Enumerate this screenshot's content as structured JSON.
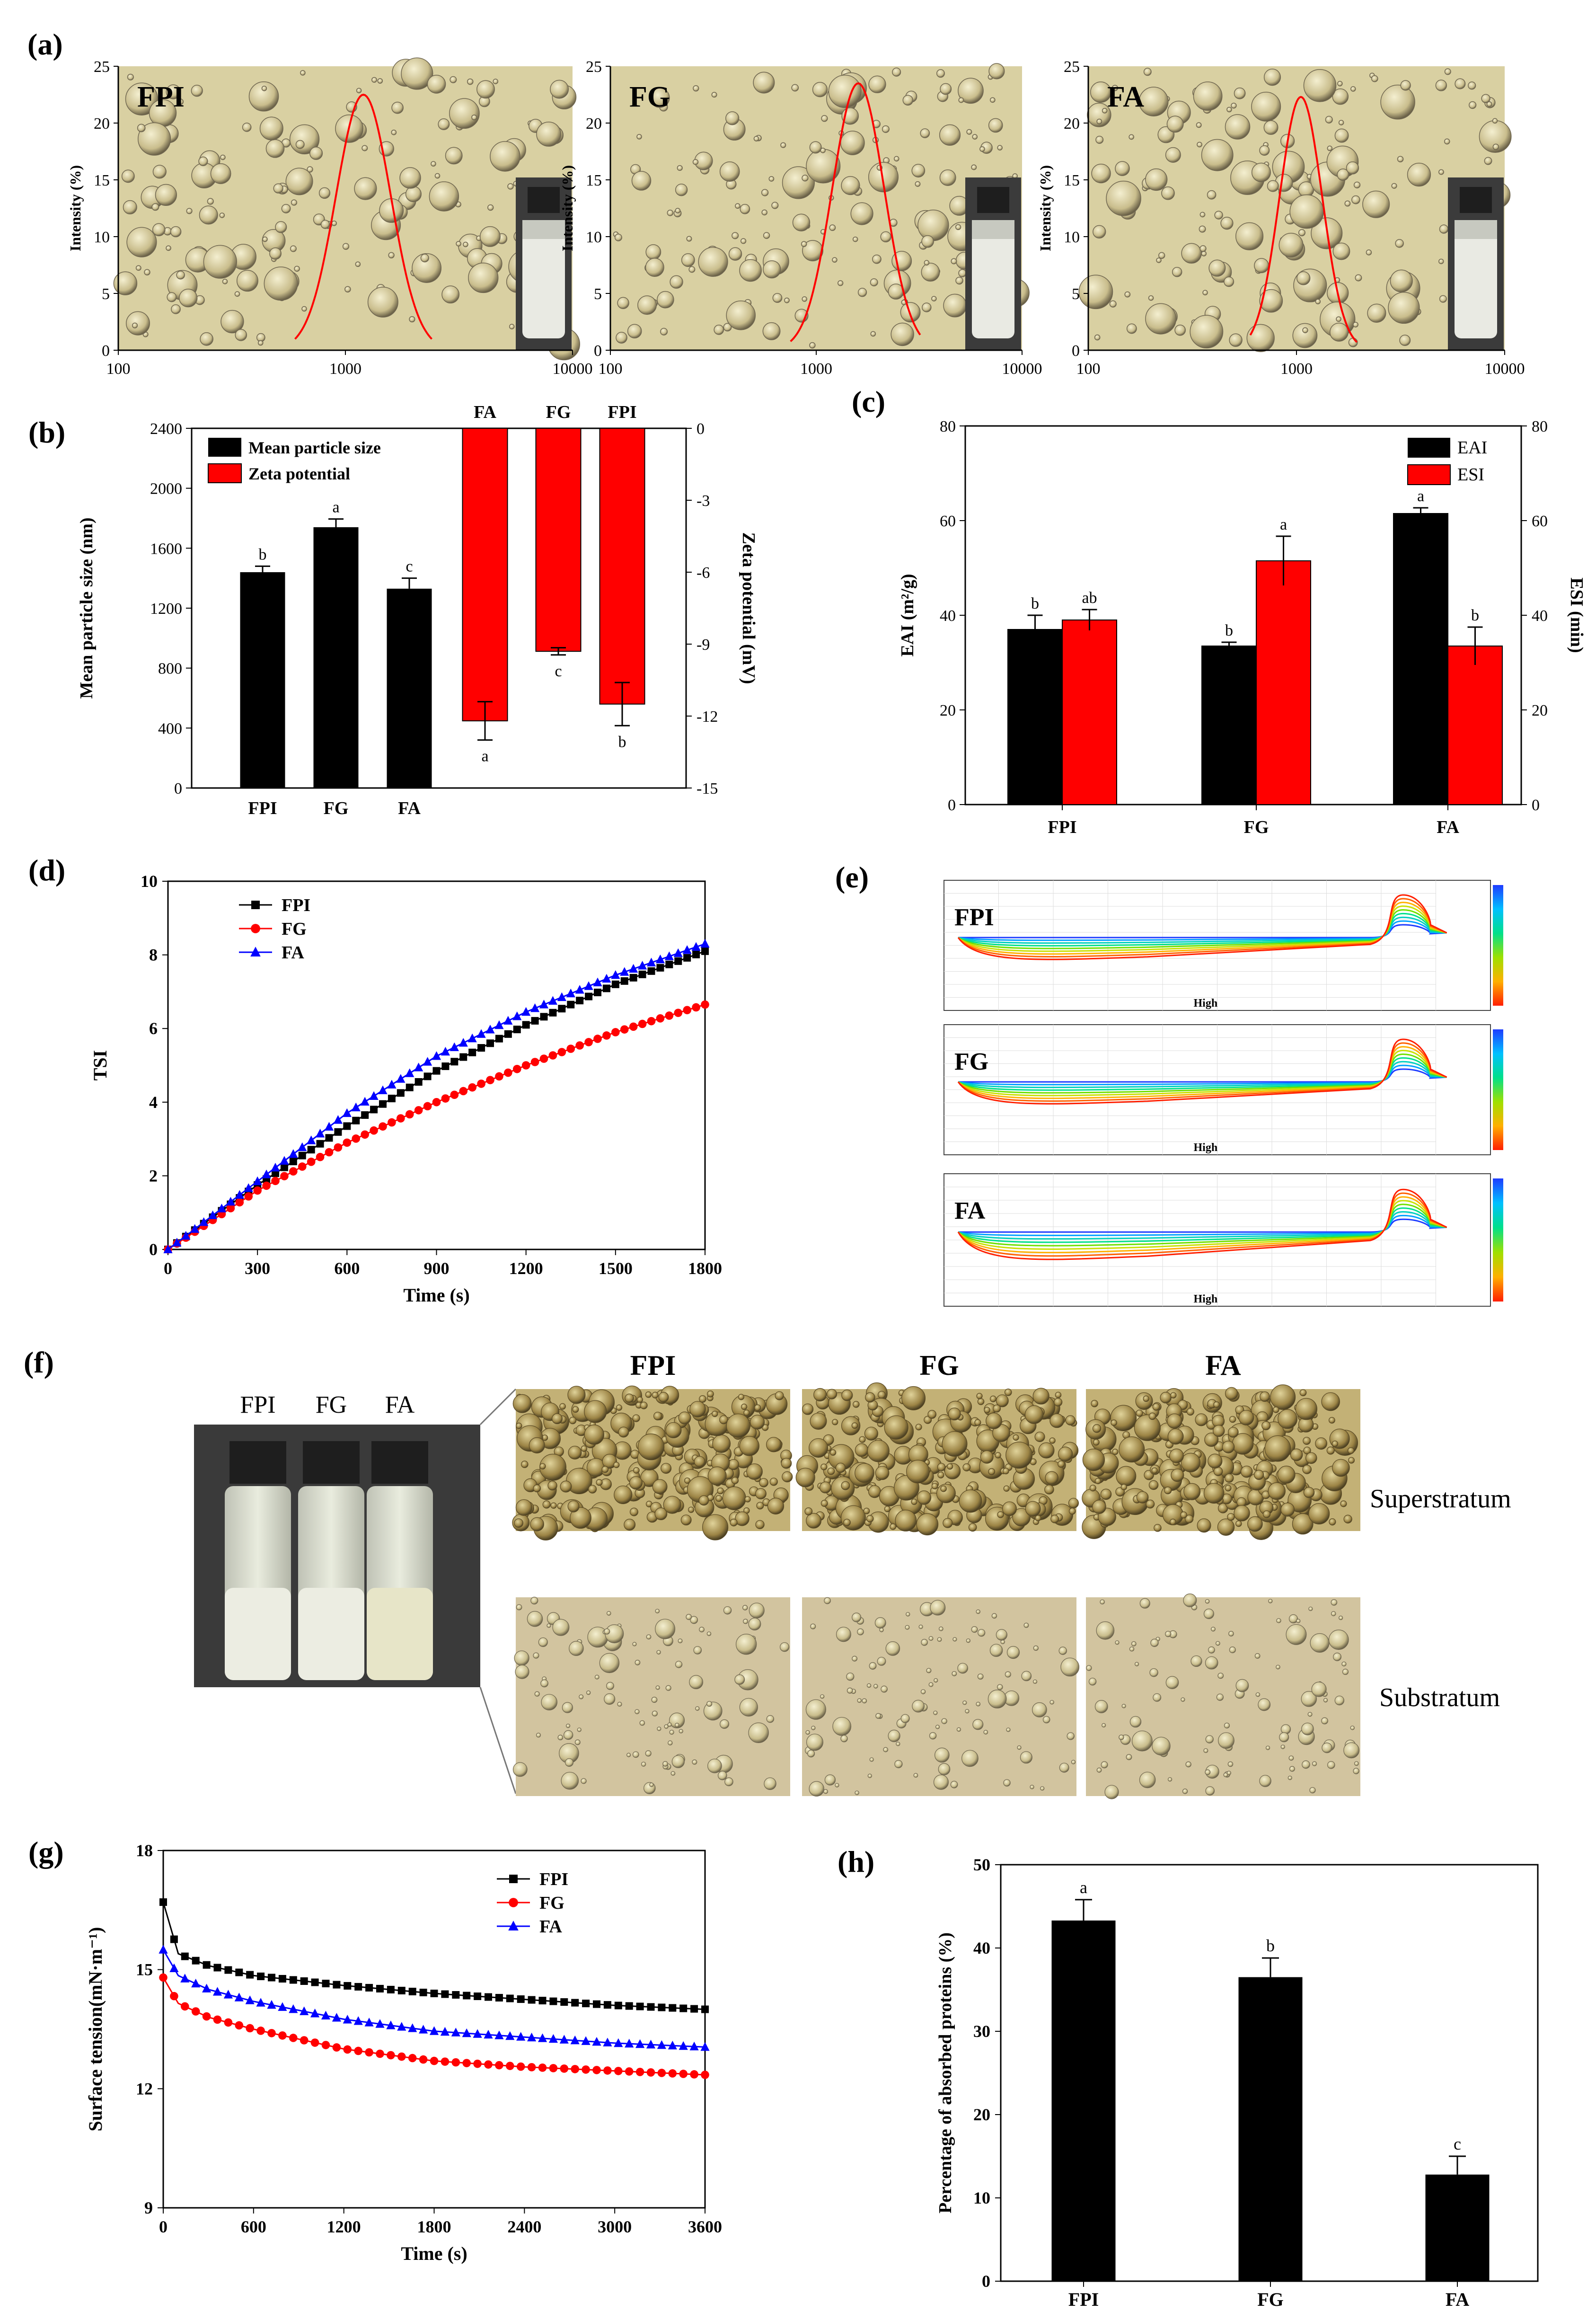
{
  "panels": {
    "a": "(a)",
    "b": "(b)",
    "c": "(c)",
    "d": "(d)",
    "e": "(e)",
    "f": "(f)",
    "g": "(g)",
    "h": "(h)"
  },
  "colors": {
    "black": "#000000",
    "red": "#ff0000",
    "blue": "#0000ff",
    "micro_bg": "#d8cfa0",
    "micro_bg2": "#d4c79e"
  },
  "chart_data": [
    {
      "id": "a-FPI",
      "type": "line",
      "title": "FPI",
      "ylabel": "Intensity (%)",
      "xscale": "log",
      "xlim": [
        100,
        10000
      ],
      "ylim": [
        0,
        25
      ],
      "xticks": [
        "100",
        "1000",
        "10000"
      ],
      "yticks": [
        "0",
        "5",
        "10",
        "15",
        "20",
        "25"
      ],
      "series": [
        {
          "color": "#ff0000",
          "peak_x": 1200,
          "peak_y": 22.5,
          "range_x": [
            600,
            2400
          ]
        }
      ]
    },
    {
      "id": "a-FG",
      "type": "line",
      "title": "FG",
      "ylabel": "Intensity (%)",
      "xscale": "log",
      "xlim": [
        100,
        10000
      ],
      "ylim": [
        0,
        25
      ],
      "xticks": [
        "100",
        "1000",
        "10000"
      ],
      "yticks": [
        "0",
        "5",
        "10",
        "15",
        "20",
        "25"
      ],
      "series": [
        {
          "color": "#ff0000",
          "peak_x": 1600,
          "peak_y": 23.5,
          "range_x": [
            750,
            3200
          ]
        }
      ]
    },
    {
      "id": "a-FA",
      "type": "line",
      "title": "FA",
      "ylabel": "Intensity (%)",
      "xscale": "log",
      "xlim": [
        100,
        10000
      ],
      "ylim": [
        0,
        25
      ],
      "xticks": [
        "100",
        "1000",
        "10000"
      ],
      "yticks": [
        "0",
        "5",
        "10",
        "15",
        "20",
        "25"
      ],
      "series": [
        {
          "color": "#ff0000",
          "peak_x": 1050,
          "peak_y": 22.3,
          "range_x": [
            600,
            1950
          ]
        }
      ]
    },
    {
      "id": "b",
      "type": "bar",
      "ylabel": "Mean particle size (nm)",
      "y2label": "Zeta potential (mV)",
      "ylim": [
        0,
        2400
      ],
      "y2lim": [
        -15,
        0
      ],
      "yticks": [
        "0",
        "400",
        "800",
        "1200",
        "1600",
        "2000",
        "2400"
      ],
      "y2ticks": [
        "0",
        "-3",
        "-6",
        "-9",
        "-12",
        "-15"
      ],
      "legend": [
        "Mean particle size",
        "Zeta potential"
      ],
      "size": {
        "categories": [
          "FPI",
          "FG",
          "FA"
        ],
        "values": [
          1440,
          1740,
          1330
        ],
        "errors": [
          40,
          55,
          70
        ],
        "letters": [
          "b",
          "a",
          "c"
        ]
      },
      "zeta": {
        "categories": [
          "FA",
          "FG",
          "FPI"
        ],
        "values": [
          -12.2,
          -9.3,
          -11.5
        ],
        "errors": [
          0.8,
          0.15,
          0.9
        ],
        "letters": [
          "a",
          "c",
          "b"
        ]
      }
    },
    {
      "id": "c",
      "type": "bar",
      "ylabel": "EAI (m²/g)",
      "y2label": "ESI (min)",
      "ylim": [
        0,
        80
      ],
      "y2lim": [
        0,
        80
      ],
      "yticks": [
        "0",
        "20",
        "40",
        "60",
        "80"
      ],
      "categories": [
        "FPI",
        "FG",
        "FA"
      ],
      "legend": [
        "EAI",
        "ESI"
      ],
      "series": [
        {
          "name": "EAI",
          "values": [
            37,
            33.5,
            61.5
          ],
          "errors": [
            3,
            0.8,
            1.2
          ],
          "letters": [
            "b",
            "b",
            "a"
          ]
        },
        {
          "name": "ESI",
          "values": [
            39,
            51.5,
            33.5
          ],
          "errors": [
            2.2,
            5.2,
            4
          ],
          "letters": [
            "ab",
            "a",
            "b"
          ]
        }
      ]
    },
    {
      "id": "d",
      "type": "line",
      "xlabel": "Time (s)",
      "ylabel": "TSI",
      "xlim": [
        0,
        1800
      ],
      "ylim": [
        0,
        10
      ],
      "xticks": [
        "0",
        "300",
        "600",
        "900",
        "1200",
        "1500",
        "1800"
      ],
      "yticks": [
        "0",
        "2",
        "4",
        "6",
        "8",
        "10"
      ],
      "series": [
        {
          "name": "FPI",
          "color": "#000000",
          "marker": "square",
          "x": [
            0,
            300,
            600,
            900,
            1200,
            1500,
            1800
          ],
          "y": [
            0,
            1.75,
            3.35,
            4.85,
            6.1,
            7.2,
            8.1
          ]
        },
        {
          "name": "FG",
          "color": "#ff0000",
          "marker": "circle",
          "x": [
            0,
            300,
            600,
            900,
            1200,
            1500,
            1800
          ],
          "y": [
            0,
            1.6,
            2.9,
            4.0,
            5.0,
            5.9,
            6.65
          ]
        },
        {
          "name": "FA",
          "color": "#0000ff",
          "marker": "triangle",
          "x": [
            0,
            300,
            600,
            900,
            1200,
            1500,
            1800
          ],
          "y": [
            0,
            1.85,
            3.7,
            5.25,
            6.45,
            7.45,
            8.3
          ]
        }
      ]
    },
    {
      "id": "g",
      "type": "line",
      "xlabel": "Time (s)",
      "ylabel": "Surface tension(mN·m⁻¹)",
      "xlim": [
        0,
        3600
      ],
      "ylim": [
        9,
        18
      ],
      "xticks": [
        "0",
        "600",
        "1200",
        "1800",
        "2400",
        "3000",
        "3600"
      ],
      "yticks": [
        "9",
        "12",
        "15",
        "18"
      ],
      "series": [
        {
          "name": "FPI",
          "color": "#000000",
          "marker": "square",
          "x": [
            0,
            100,
            300,
            600,
            1200,
            1800,
            2400,
            3000,
            3600
          ],
          "y": [
            16.7,
            15.4,
            15.1,
            14.85,
            14.6,
            14.4,
            14.25,
            14.1,
            14.0
          ]
        },
        {
          "name": "FG",
          "color": "#ff0000",
          "marker": "circle",
          "x": [
            0,
            100,
            300,
            600,
            1200,
            1800,
            2400,
            3000,
            3600
          ],
          "y": [
            14.8,
            14.15,
            13.8,
            13.5,
            13.0,
            12.7,
            12.55,
            12.45,
            12.35
          ]
        },
        {
          "name": "FA",
          "color": "#0000ff",
          "marker": "triangle",
          "x": [
            0,
            100,
            300,
            600,
            1200,
            1800,
            2400,
            3000,
            3600
          ],
          "y": [
            15.5,
            14.85,
            14.5,
            14.2,
            13.75,
            13.45,
            13.3,
            13.15,
            13.05
          ]
        }
      ]
    },
    {
      "id": "h",
      "type": "bar",
      "ylabel": "Percentage of absorbed proteins (%)",
      "ylim": [
        0,
        50
      ],
      "yticks": [
        "0",
        "10",
        "20",
        "30",
        "40",
        "50"
      ],
      "categories": [
        "FPI",
        "FG",
        "FA"
      ],
      "series": [
        {
          "values": [
            43.3,
            36.5,
            12.8
          ],
          "errors": [
            2.5,
            2.3,
            2.2
          ],
          "letters": [
            "a",
            "b",
            "c"
          ]
        }
      ]
    }
  ],
  "panel_e": {
    "rows": [
      "FPI",
      "FG",
      "FA"
    ],
    "axis_label": "High"
  },
  "panel_f": {
    "bottles": [
      "FPI",
      "FG",
      "FA"
    ],
    "columns": [
      "FPI",
      "FG",
      "FA"
    ],
    "rows": [
      "Superstratum",
      "Substratum"
    ]
  }
}
